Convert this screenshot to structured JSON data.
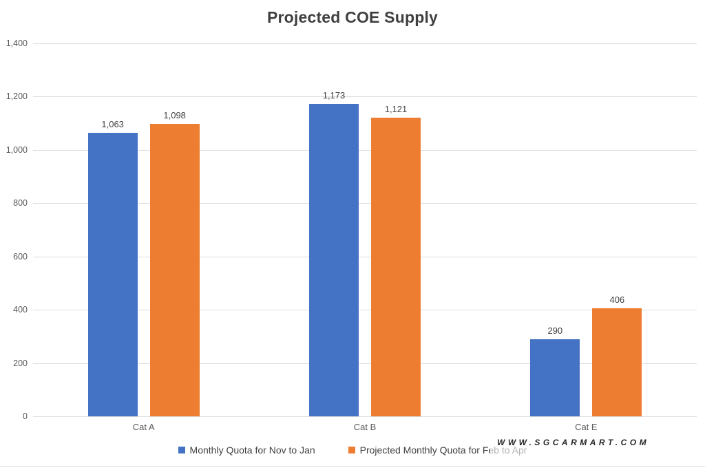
{
  "chart_data": {
    "type": "bar",
    "title": "Projected COE Supply",
    "categories": [
      "Cat A",
      "Cat B",
      "Cat E"
    ],
    "series": [
      {
        "name": "Monthly Quota for Nov to Jan",
        "color": "#4472C4",
        "values": [
          1063,
          1173,
          290
        ],
        "labels": [
          "1,063",
          "1,173",
          "290"
        ]
      },
      {
        "name": "Projected Monthly Quota for Feb to Apr",
        "color": "#ED7D31",
        "values": [
          1098,
          1121,
          406
        ],
        "labels": [
          "1,098",
          "1,121",
          "406"
        ]
      }
    ],
    "ylim": [
      0,
      1400
    ],
    "yticks": [
      {
        "value": 0,
        "label": "0"
      },
      {
        "value": 200,
        "label": "200"
      },
      {
        "value": 400,
        "label": "400"
      },
      {
        "value": 600,
        "label": "600"
      },
      {
        "value": 800,
        "label": "800"
      },
      {
        "value": 1000,
        "label": "1,000"
      },
      {
        "value": 1200,
        "label": "1,200"
      },
      {
        "value": 1400,
        "label": "1,400"
      }
    ],
    "grid": true,
    "gridline_color": "#dcdcdc",
    "legend_position": "bottom"
  },
  "watermark": {
    "text": "WWW.SGCARMART.COM"
  }
}
